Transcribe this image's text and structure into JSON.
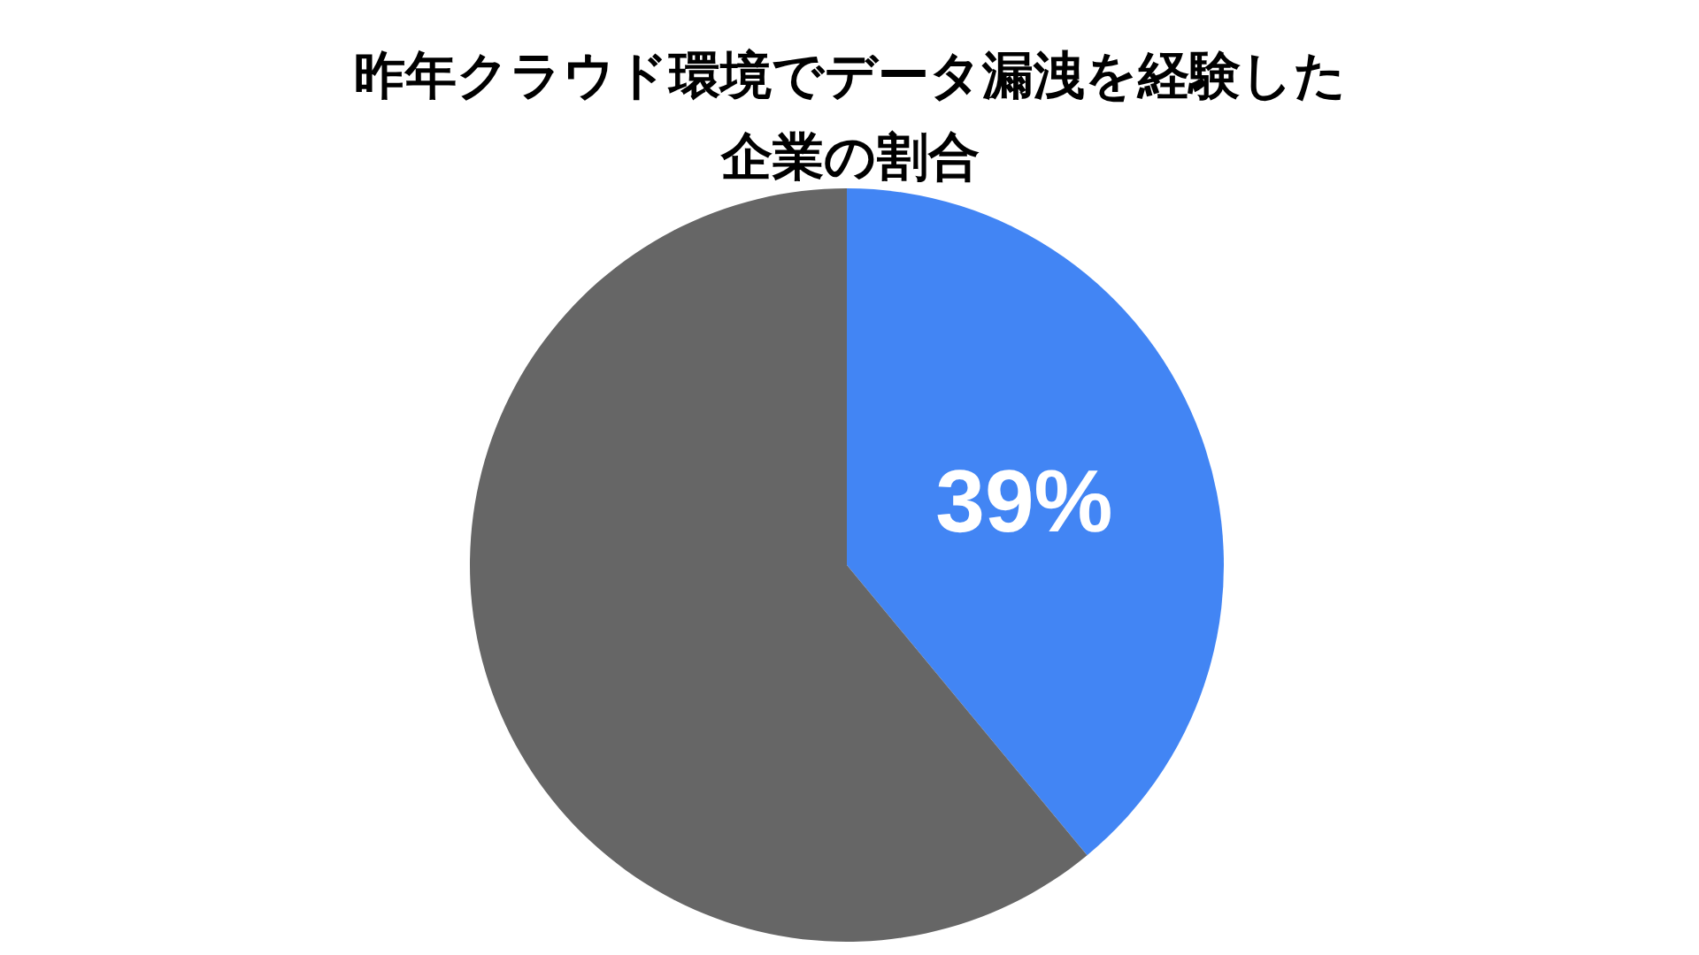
{
  "chart_data": {
    "type": "pie",
    "title": "昨年クラウド環境でデータ漏洩を経験した企業の割合",
    "categories": [
      null,
      null
    ],
    "values": [
      39,
      61
    ],
    "colors": [
      "#4285f4",
      "#666666"
    ],
    "value_labels": [
      "39%",
      null
    ]
  }
}
